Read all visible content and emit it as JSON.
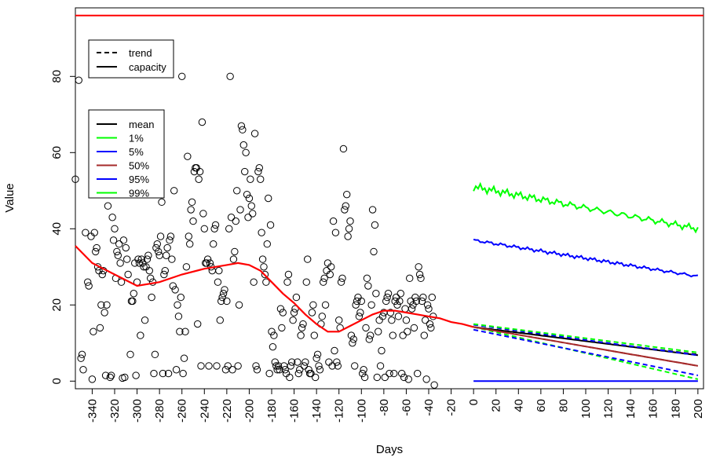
{
  "chart_data": {
    "type": "scatter",
    "xlabel": "Days",
    "ylabel": "Value",
    "xlim": [
      -355,
      205
    ],
    "ylim": [
      -2,
      98
    ],
    "grid": false,
    "x_ticks": [
      -340,
      -320,
      -300,
      -280,
      -260,
      -240,
      -220,
      -200,
      -180,
      -160,
      -140,
      -120,
      -100,
      -80,
      -60,
      -40,
      -20,
      0,
      20,
      40,
      60,
      80,
      100,
      120,
      140,
      160,
      180,
      200
    ],
    "x_tick_labels": [
      "-340",
      "-320",
      "-300",
      "-280",
      "-260",
      "-240",
      "-220",
      "-200",
      "-180",
      "-160",
      "-140",
      "-120",
      "-100",
      "-80",
      "-60",
      "-40",
      "-20",
      "0",
      "20",
      "40",
      "60",
      "80",
      "100",
      "120",
      "140",
      "160",
      "180",
      "200"
    ],
    "y_ticks": [
      0,
      20,
      40,
      60,
      80
    ],
    "y_tick_labels": [
      "0",
      "20",
      "40",
      "60",
      "80"
    ],
    "capacity_value": 96,
    "capacity_color": "#ff0000",
    "historical_points": [
      [
        -355,
        53
      ],
      [
        -352,
        79
      ],
      [
        -350,
        6
      ],
      [
        -349,
        7
      ],
      [
        -348,
        3
      ],
      [
        -346,
        39
      ],
      [
        -344,
        26
      ],
      [
        -343,
        25
      ],
      [
        -341,
        38
      ],
      [
        -340,
        0.5
      ],
      [
        -339,
        13
      ],
      [
        -338,
        39
      ],
      [
        -337,
        34
      ],
      [
        -336,
        35
      ],
      [
        -335,
        30
      ],
      [
        -334,
        29
      ],
      [
        -333,
        14
      ],
      [
        -332,
        20
      ],
      [
        -331,
        28
      ],
      [
        -330,
        29
      ],
      [
        -329,
        18
      ],
      [
        -328,
        1.5
      ],
      [
        -327,
        20
      ],
      [
        -326,
        46
      ],
      [
        -325,
        57
      ],
      [
        -324,
        1
      ],
      [
        -323,
        1.5
      ],
      [
        -322,
        43
      ],
      [
        -321,
        37
      ],
      [
        -320,
        40
      ],
      [
        -319,
        27
      ],
      [
        -318,
        34
      ],
      [
        -317,
        33
      ],
      [
        -316,
        36
      ],
      [
        -315,
        31
      ],
      [
        -314,
        26
      ],
      [
        -313,
        0.8
      ],
      [
        -312,
        37
      ],
      [
        -311,
        1
      ],
      [
        -310,
        35
      ],
      [
        -309,
        32
      ],
      [
        -308,
        28
      ],
      [
        -306,
        7
      ],
      [
        -305,
        21
      ],
      [
        -304,
        21
      ],
      [
        -303,
        23
      ],
      [
        -302,
        31
      ],
      [
        -301,
        1.5
      ],
      [
        -300,
        26
      ],
      [
        -299,
        32
      ],
      [
        -298,
        31
      ],
      [
        -297,
        12
      ],
      [
        -296,
        32
      ],
      [
        -295,
        31
      ],
      [
        -294,
        30
      ],
      [
        -293,
        16
      ],
      [
        -292,
        30
      ],
      [
        -291,
        32
      ],
      [
        -290,
        33
      ],
      [
        -289,
        29
      ],
      [
        -288,
        27
      ],
      [
        -287,
        22
      ],
      [
        -286,
        26
      ],
      [
        -285,
        2
      ],
      [
        -284,
        7
      ],
      [
        -283,
        35
      ],
      [
        -282,
        36
      ],
      [
        -281,
        34
      ],
      [
        -280,
        33
      ],
      [
        -279,
        38
      ],
      [
        -278,
        47
      ],
      [
        -277,
        2
      ],
      [
        -276,
        28
      ],
      [
        -275,
        29
      ],
      [
        -274,
        33
      ],
      [
        -273,
        35
      ],
      [
        -272,
        2
      ],
      [
        -271,
        37
      ],
      [
        -270,
        38
      ],
      [
        -269,
        32
      ],
      [
        -268,
        25
      ],
      [
        -267,
        50
      ],
      [
        -266,
        24
      ],
      [
        -265,
        3
      ],
      [
        -264,
        20
      ],
      [
        -263,
        17
      ],
      [
        -262,
        13
      ],
      [
        -261,
        22
      ],
      [
        -260,
        80
      ],
      [
        -259,
        2
      ],
      [
        -258,
        6
      ],
      [
        -257,
        13
      ],
      [
        -256,
        30
      ],
      [
        -255,
        59
      ],
      [
        -254,
        38
      ],
      [
        -253,
        36
      ],
      [
        -252,
        45
      ],
      [
        -251,
        47
      ],
      [
        -250,
        42
      ],
      [
        -249,
        55
      ],
      [
        -248,
        56
      ],
      [
        -247,
        56
      ],
      [
        -246,
        15
      ],
      [
        -245,
        53
      ],
      [
        -244,
        55
      ],
      [
        -243,
        4
      ],
      [
        -242,
        68
      ],
      [
        -241,
        44
      ],
      [
        -240,
        40
      ],
      [
        -239,
        31
      ],
      [
        -238,
        31
      ],
      [
        -237,
        32
      ],
      [
        -236,
        4
      ],
      [
        -235,
        31
      ],
      [
        -234,
        30
      ],
      [
        -233,
        29
      ],
      [
        -232,
        36
      ],
      [
        -231,
        40
      ],
      [
        -230,
        41
      ],
      [
        -229,
        4
      ],
      [
        -228,
        26
      ],
      [
        -227,
        29
      ],
      [
        -226,
        16
      ],
      [
        -225,
        21
      ],
      [
        -224,
        22
      ],
      [
        -223,
        23
      ],
      [
        -222,
        24
      ],
      [
        -221,
        3
      ],
      [
        -220,
        21
      ],
      [
        -219,
        4
      ],
      [
        -218,
        40
      ],
      [
        -217,
        80
      ],
      [
        -216,
        43
      ],
      [
        -215,
        3
      ],
      [
        -214,
        32
      ],
      [
        -213,
        34
      ],
      [
        -212,
        42
      ],
      [
        -211,
        50
      ],
      [
        -210,
        4
      ],
      [
        -209,
        20
      ],
      [
        -208,
        45
      ],
      [
        -207,
        67
      ],
      [
        -206,
        66
      ],
      [
        -205,
        62
      ],
      [
        -204,
        55
      ],
      [
        -203,
        60
      ],
      [
        -202,
        49
      ],
      [
        -201,
        43
      ],
      [
        -200,
        48
      ],
      [
        -199,
        53
      ],
      [
        -198,
        46
      ],
      [
        -197,
        44
      ],
      [
        -196,
        26
      ],
      [
        -195,
        65
      ],
      [
        -194,
        4
      ],
      [
        -193,
        3
      ],
      [
        -192,
        55
      ],
      [
        -191,
        56
      ],
      [
        -190,
        53
      ],
      [
        -189,
        39
      ],
      [
        -188,
        32
      ],
      [
        -187,
        30
      ],
      [
        -186,
        28
      ],
      [
        -185,
        26
      ],
      [
        -184,
        36
      ],
      [
        -183,
        48
      ],
      [
        -182,
        2
      ],
      [
        -181,
        41
      ],
      [
        -180,
        13
      ],
      [
        -179,
        9
      ],
      [
        -178,
        12
      ],
      [
        -177,
        5
      ],
      [
        -176,
        4
      ],
      [
        -175,
        3
      ],
      [
        -174,
        4
      ],
      [
        -173,
        3
      ],
      [
        -172,
        19
      ],
      [
        -171,
        14
      ],
      [
        -170,
        18
      ],
      [
        -169,
        4
      ],
      [
        -168,
        3
      ],
      [
        -167,
        2
      ],
      [
        -166,
        26
      ],
      [
        -165,
        28
      ],
      [
        -164,
        1
      ],
      [
        -163,
        4
      ],
      [
        -162,
        5
      ],
      [
        -161,
        16
      ],
      [
        -160,
        18
      ],
      [
        -159,
        19
      ],
      [
        -158,
        22
      ],
      [
        -157,
        5
      ],
      [
        -156,
        2
      ],
      [
        -155,
        3
      ],
      [
        -154,
        12
      ],
      [
        -153,
        14
      ],
      [
        -152,
        15
      ],
      [
        -151,
        4
      ],
      [
        -150,
        5
      ],
      [
        -149,
        26
      ],
      [
        -148,
        32
      ],
      [
        -147,
        3
      ],
      [
        -146,
        2
      ],
      [
        -145,
        2
      ],
      [
        -144,
        18
      ],
      [
        -143,
        20
      ],
      [
        -142,
        12
      ],
      [
        -141,
        1
      ],
      [
        -140,
        6
      ],
      [
        -139,
        7
      ],
      [
        -138,
        4
      ],
      [
        -137,
        3
      ],
      [
        -136,
        15
      ],
      [
        -135,
        17
      ],
      [
        -134,
        26
      ],
      [
        -133,
        27
      ],
      [
        -132,
        20
      ],
      [
        -131,
        29
      ],
      [
        -130,
        31
      ],
      [
        -129,
        5
      ],
      [
        -128,
        28
      ],
      [
        -127,
        30
      ],
      [
        -126,
        4
      ],
      [
        -125,
        42
      ],
      [
        -124,
        8
      ],
      [
        -123,
        39
      ],
      [
        -122,
        5
      ],
      [
        -121,
        4
      ],
      [
        -120,
        16
      ],
      [
        -119,
        14
      ],
      [
        -118,
        26
      ],
      [
        -117,
        27
      ],
      [
        -116,
        61
      ],
      [
        -115,
        45
      ],
      [
        -114,
        46
      ],
      [
        -113,
        49
      ],
      [
        -112,
        38
      ],
      [
        -111,
        40
      ],
      [
        -110,
        42
      ],
      [
        -109,
        12
      ],
      [
        -108,
        10
      ],
      [
        -107,
        11
      ],
      [
        -106,
        4
      ],
      [
        -105,
        20
      ],
      [
        -104,
        21
      ],
      [
        -103,
        22
      ],
      [
        -102,
        17
      ],
      [
        -101,
        18
      ],
      [
        -100,
        21
      ],
      [
        -99,
        2
      ],
      [
        -98,
        3
      ],
      [
        -97,
        1
      ],
      [
        -96,
        14
      ],
      [
        -95,
        27
      ],
      [
        -94,
        25
      ],
      [
        -93,
        11
      ],
      [
        -92,
        12
      ],
      [
        -91,
        20
      ],
      [
        -90,
        45
      ],
      [
        -89,
        34
      ],
      [
        -88,
        41
      ],
      [
        -87,
        23
      ],
      [
        -86,
        1
      ],
      [
        -85,
        13
      ],
      [
        -84,
        16
      ],
      [
        -83,
        4
      ],
      [
        -82,
        8
      ],
      [
        -81,
        17
      ],
      [
        -80,
        18
      ],
      [
        -79,
        1
      ],
      [
        -78,
        21
      ],
      [
        -77,
        22
      ],
      [
        -76,
        23
      ],
      [
        -75,
        2
      ],
      [
        -74,
        18
      ],
      [
        -73,
        16
      ],
      [
        -72,
        12
      ],
      [
        -71,
        2
      ],
      [
        -70,
        21
      ],
      [
        -69,
        22
      ],
      [
        -68,
        20
      ],
      [
        -67,
        17
      ],
      [
        -66,
        21
      ],
      [
        -65,
        23
      ],
      [
        -64,
        2
      ],
      [
        -63,
        12
      ],
      [
        -62,
        1
      ],
      [
        -61,
        19
      ],
      [
        -60,
        16
      ],
      [
        -59,
        13
      ],
      [
        -58,
        0.5
      ],
      [
        -57,
        27
      ],
      [
        -56,
        21
      ],
      [
        -55,
        19
      ],
      [
        -54,
        20
      ],
      [
        -53,
        14
      ],
      [
        -52,
        22
      ],
      [
        -51,
        21
      ],
      [
        -50,
        2
      ],
      [
        -49,
        30
      ],
      [
        -48,
        28
      ],
      [
        -47,
        27
      ],
      [
        -46,
        21
      ],
      [
        -45,
        22
      ],
      [
        -44,
        12
      ],
      [
        -43,
        16
      ],
      [
        -42,
        0.5
      ],
      [
        -41,
        20
      ],
      [
        -40,
        19
      ],
      [
        -39,
        15
      ],
      [
        -38,
        14
      ],
      [
        -37,
        22
      ],
      [
        -36,
        17
      ],
      [
        -35,
        -1
      ]
    ],
    "historical_smooth": {
      "name": "",
      "color": "#ff0000",
      "x": [
        -355,
        -340,
        -320,
        -300,
        -280,
        -260,
        -240,
        -220,
        -210,
        -200,
        -190,
        -180,
        -170,
        -160,
        -150,
        -140,
        -130,
        -120,
        -110,
        -100,
        -90,
        -80,
        -70,
        -60,
        -50,
        -40,
        -30,
        -20,
        -10,
        0
      ],
      "y": [
        35.5,
        31,
        28,
        25,
        26,
        28,
        29.5,
        30.5,
        31,
        30.5,
        29,
        26,
        23,
        20.5,
        17.5,
        15,
        13,
        13,
        14.5,
        16,
        17.5,
        18.5,
        18.5,
        18,
        17.5,
        17,
        16.5,
        15.5,
        15,
        14.2
      ]
    },
    "forecast_x": [
      0,
      200
    ],
    "forecast_series": [
      {
        "name": "mean",
        "style": "trend",
        "color": "#000000",
        "y": [
          14.2,
          7
        ]
      },
      {
        "name": "mean",
        "style": "capacity",
        "color": "#000000",
        "y": [
          14.2,
          6.8
        ]
      },
      {
        "name": "1%",
        "style": "trend",
        "color": "#00ff00",
        "y": [
          14.2,
          0.5
        ]
      },
      {
        "name": "1%",
        "style": "capacity",
        "color": "#00ff00",
        "y": [
          null,
          null
        ]
      },
      {
        "name": "5%",
        "style": "trend",
        "color": "#0000ff",
        "y": [
          13.5,
          1.5
        ]
      },
      {
        "name": "5%",
        "style": "capacity",
        "color": "#0000ff",
        "y": [
          0,
          0
        ]
      },
      {
        "name": "50%",
        "style": "trend",
        "color": "#a52a2a",
        "y": [
          14.2,
          4
        ]
      },
      {
        "name": "50%",
        "style": "capacity",
        "color": "#a52a2a",
        "y": [
          14.2,
          4
        ]
      },
      {
        "name": "95%",
        "style": "trend",
        "color": "#0000ff",
        "y": [
          14.8,
          6.8
        ]
      },
      {
        "name": "95%",
        "style": "capacity",
        "color": "#0000ff",
        "y": [
          37,
          27.5
        ]
      },
      {
        "name": "99%",
        "style": "trend",
        "color": "#00ff00",
        "y": [
          15,
          7.5
        ]
      },
      {
        "name": "99%",
        "style": "capacity",
        "color": "#00ff00",
        "y": [
          51,
          40
        ]
      }
    ],
    "legend_styles": {
      "placement": "top-left",
      "entries": [
        {
          "label": "trend",
          "dash": true
        },
        {
          "label": "capacity",
          "dash": false
        }
      ]
    },
    "legend_quantiles": {
      "placement": "upper-left",
      "entries": [
        {
          "label": "mean",
          "color": "#000000"
        },
        {
          "label": "1%",
          "color": "#00ff00"
        },
        {
          "label": "5%",
          "color": "#0000ff"
        },
        {
          "label": "50%",
          "color": "#a52a2a"
        },
        {
          "label": "95%",
          "color": "#0000ff"
        },
        {
          "label": "99%",
          "color": "#00ff00"
        }
      ]
    }
  }
}
